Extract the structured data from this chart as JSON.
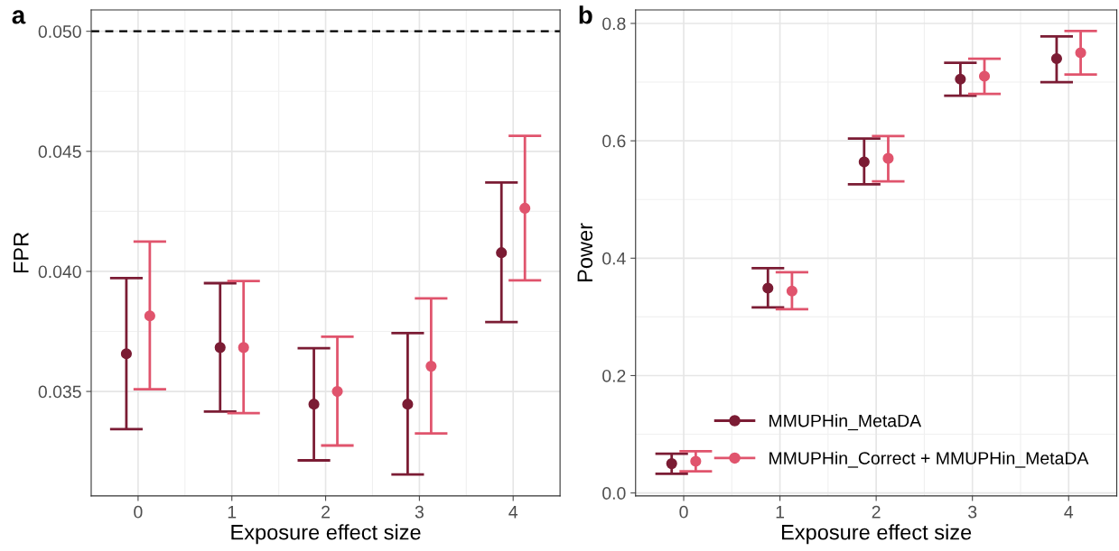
{
  "chart_data": [
    {
      "type": "scatter",
      "title": "a",
      "xlabel": "Exposure effect size",
      "ylabel": "FPR",
      "categories": [
        "0",
        "1",
        "2",
        "3",
        "4"
      ],
      "series": [
        {
          "color": "#7b1c34",
          "values": [
            0.03657,
            0.03683,
            0.03447,
            0.03447,
            0.04078
          ],
          "errors": [
            [
              0.03343,
              0.03972
            ],
            [
              0.03416,
              0.03951
            ],
            [
              0.03213,
              0.0368
            ],
            [
              0.03154,
              0.03743
            ],
            [
              0.03789,
              0.0437
            ]
          ]
        },
        {
          "color": "#e0546d",
          "values": [
            0.03815,
            0.03683,
            0.035,
            0.03605,
            0.04263
          ],
          "errors": [
            [
              0.03509,
              0.04124
            ],
            [
              0.0341,
              0.0396
            ],
            [
              0.03275,
              0.03728
            ],
            [
              0.03325,
              0.03888
            ],
            [
              0.03963,
              0.04565
            ]
          ]
        }
      ],
      "ylim": [
        0.03065,
        0.05089
      ],
      "yticks": [
        {
          "value": 0.035,
          "label": "0.035"
        },
        {
          "value": 0.04,
          "label": "0.040"
        },
        {
          "value": 0.045,
          "label": "0.045"
        },
        {
          "value": 0.05,
          "label": "0.050"
        }
      ],
      "ref_lines": [
        {
          "axis": "y",
          "value": 0.05,
          "color": "#000000",
          "line_style": "dashed"
        }
      ],
      "grid": true,
      "legend": false,
      "marker": "circle"
    },
    {
      "type": "scatter",
      "title": "b",
      "xlabel": "Exposure effect size",
      "ylabel": "Power",
      "categories": [
        "0",
        "1",
        "2",
        "3",
        "4"
      ],
      "series": [
        {
          "name": "MMUPHin_MetaDA",
          "color": "#7b1c34",
          "values": [
            0.05,
            0.349,
            0.564,
            0.705,
            0.74
          ],
          "errors": [
            [
              0.0326,
              0.067
            ],
            [
              0.316,
              0.383
            ],
            [
              0.526,
              0.604
            ],
            [
              0.677,
              0.733
            ],
            [
              0.7,
              0.778
            ]
          ]
        },
        {
          "name": "MMUPHin_Correct + MMUPHin_MetaDA",
          "color": "#e0546d",
          "values": [
            0.054,
            0.344,
            0.57,
            0.71,
            0.75
          ],
          "errors": [
            [
              0.037,
              0.071
            ],
            [
              0.313,
              0.376
            ],
            [
              0.531,
              0.608
            ],
            [
              0.68,
              0.74
            ],
            [
              0.713,
              0.787
            ]
          ]
        }
      ],
      "ylim": [
        -0.005,
        0.823
      ],
      "yticks": [
        {
          "value": 0,
          "label": "0.0"
        },
        {
          "value": 0.2,
          "label": "0.2"
        },
        {
          "value": 0.4,
          "label": "0.4"
        },
        {
          "value": 0.6,
          "label": "0.6"
        },
        {
          "value": 0.8,
          "label": "0.8"
        }
      ],
      "grid": true,
      "legend": "bottom right",
      "marker": "circle"
    }
  ]
}
